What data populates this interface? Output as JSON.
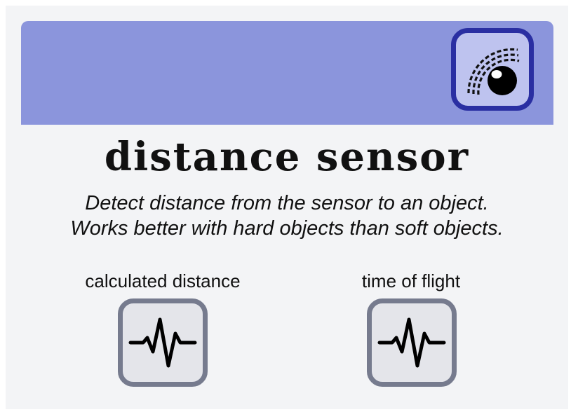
{
  "header": {
    "color": "#8b95dc",
    "icon": {
      "name": "distance-sensor-icon",
      "border_color": "#2a2fa2",
      "background": "#bec3ef"
    }
  },
  "block": {
    "title": "distance sensor",
    "description_lines": [
      "Detect distance from the sensor to an object.",
      "Works better with hard objects than soft objects."
    ]
  },
  "outputs": [
    {
      "label": "calculated distance",
      "icon": "pulse-waveform-icon"
    },
    {
      "label": "time of flight",
      "icon": "pulse-waveform-icon"
    }
  ],
  "colors": {
    "output_border": "#767b8e",
    "output_background": "#e4e5ea"
  }
}
